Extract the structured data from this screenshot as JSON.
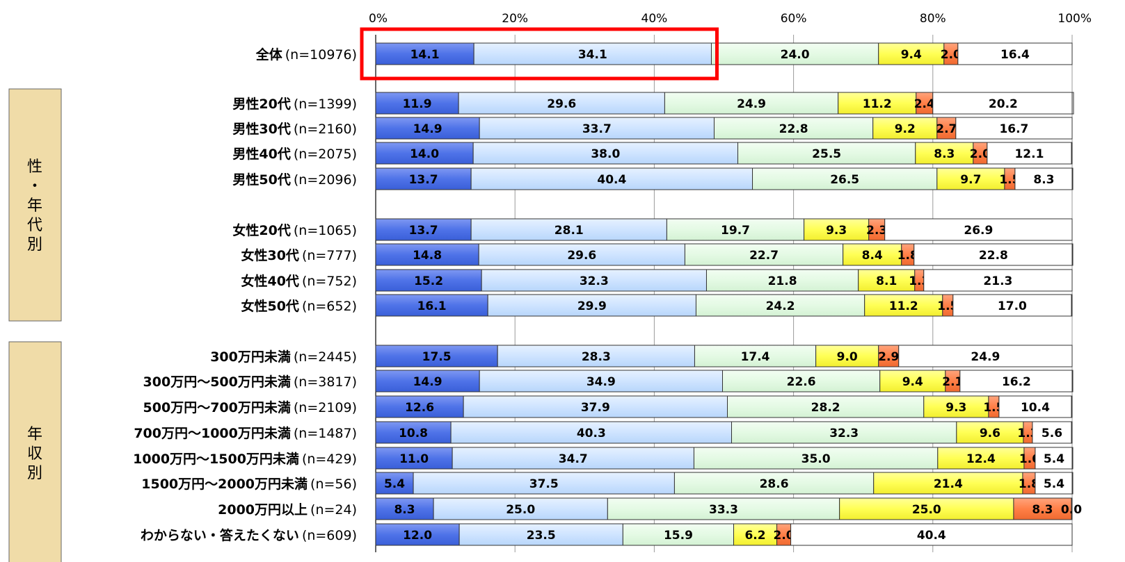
{
  "chart_data": {
    "type": "bar",
    "orientation": "horizontal",
    "stacked": true,
    "xlim": [
      0,
      100
    ],
    "tick_labels": [
      "0%",
      "20%",
      "40%",
      "60%",
      "80%",
      "100%"
    ],
    "series_colors": [
      "#4f73e8",
      "#cfe4ff",
      "#e4fae4",
      "#ffff55",
      "#ff7f47",
      "#ffffff"
    ],
    "rows": [
      {
        "name": "全体",
        "n": "(n=10976)",
        "values": [
          "14.1",
          "34.1",
          "24.0",
          "9.4",
          "2.0",
          "16.4"
        ]
      },
      {
        "name": "男性20代",
        "n": "(n=1399)",
        "values": [
          "11.9",
          "29.6",
          "24.9",
          "11.2",
          "2.4",
          "20.2"
        ]
      },
      {
        "name": "男性30代",
        "n": "(n=2160)",
        "values": [
          "14.9",
          "33.7",
          "22.8",
          "9.2",
          "2.7",
          "16.7"
        ]
      },
      {
        "name": "男性40代",
        "n": "(n=2075)",
        "values": [
          "14.0",
          "38.0",
          "25.5",
          "8.3",
          "2.0",
          "12.1"
        ]
      },
      {
        "name": "男性50代",
        "n": "(n=2096)",
        "values": [
          "13.7",
          "40.4",
          "26.5",
          "9.7",
          "1.5",
          "8.3"
        ]
      },
      {
        "name": "女性20代",
        "n": "(n=1065)",
        "values": [
          "13.7",
          "28.1",
          "19.7",
          "9.3",
          "2.3",
          "26.9"
        ]
      },
      {
        "name": "女性30代",
        "n": "(n=777)",
        "values": [
          "14.8",
          "29.6",
          "22.7",
          "8.4",
          "1.8",
          "22.8"
        ]
      },
      {
        "name": "女性40代",
        "n": "(n=752)",
        "values": [
          "15.2",
          "32.3",
          "21.8",
          "8.1",
          "1.3",
          "21.3"
        ]
      },
      {
        "name": "女性50代",
        "n": "(n=652)",
        "values": [
          "16.1",
          "29.9",
          "24.2",
          "11.2",
          "1.5",
          "17.0"
        ]
      },
      {
        "name": "300万円未満",
        "n": "(n=2445)",
        "values": [
          "17.5",
          "28.3",
          "17.4",
          "9.0",
          "2.9",
          "24.9"
        ]
      },
      {
        "name": "300万円～500万円未満",
        "n": "(n=3817)",
        "values": [
          "14.9",
          "34.9",
          "22.6",
          "9.4",
          "2.1",
          "16.2"
        ]
      },
      {
        "name": "500万円～700万円未満",
        "n": "(n=2109)",
        "values": [
          "12.6",
          "37.9",
          "28.2",
          "9.3",
          "1.5",
          "10.4"
        ]
      },
      {
        "name": "700万円～1000万円未満",
        "n": "(n=1487)",
        "values": [
          "10.8",
          "40.3",
          "32.3",
          "9.6",
          "1.3",
          "5.6"
        ]
      },
      {
        "name": "1000万円～1500万円未満",
        "n": "(n=429)",
        "values": [
          "11.0",
          "34.7",
          "35.0",
          "12.4",
          "1.6",
          "5.4"
        ]
      },
      {
        "name": "1500万円～2000万円未満",
        "n": "(n=56)",
        "values": [
          "5.4",
          "37.5",
          "28.6",
          "21.4",
          "1.8",
          "5.4"
        ]
      },
      {
        "name": "2000万円以上",
        "n": "(n=24)",
        "values": [
          "8.3",
          "25.0",
          "33.3",
          "25.0",
          "8.3",
          "0.0"
        ]
      },
      {
        "name": "わからない・答えたくない",
        "n": "(n=609)",
        "values": [
          "12.0",
          "23.5",
          "15.9",
          "6.2",
          "2.0",
          "40.4"
        ]
      }
    ],
    "groups": [
      {
        "label": "性・年代別",
        "rows": [
          1,
          8
        ]
      },
      {
        "label": "年収別",
        "rows": [
          9,
          16
        ]
      }
    ],
    "highlight": {
      "row": 0,
      "segments": [
        0,
        1
      ],
      "color": "#ff0000"
    }
  }
}
